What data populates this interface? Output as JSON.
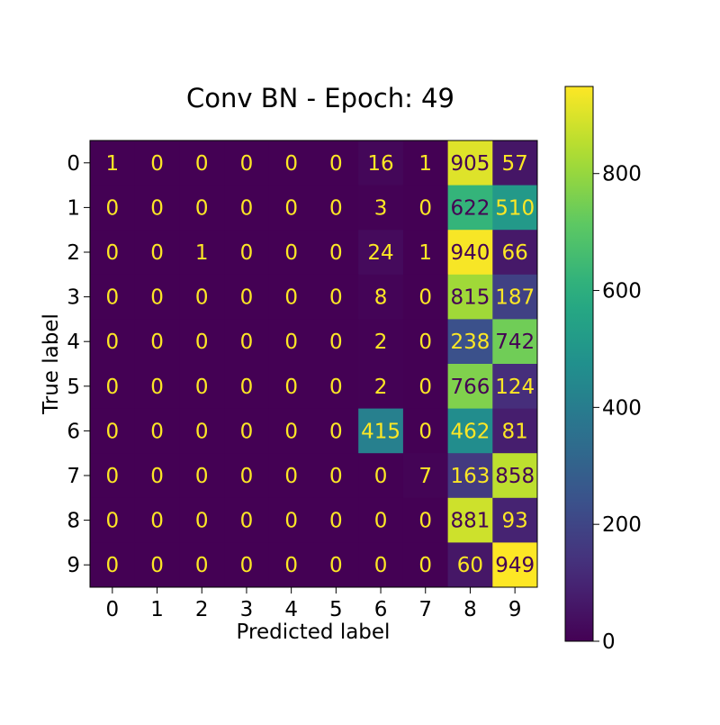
{
  "chart_data": {
    "type": "heatmap",
    "title": "Conv BN - Epoch: 49",
    "xlabel": "Predicted label",
    "ylabel": "True label",
    "x_tick_labels": [
      "0",
      "1",
      "2",
      "3",
      "4",
      "5",
      "6",
      "7",
      "8",
      "9"
    ],
    "y_tick_labels": [
      "0",
      "1",
      "2",
      "3",
      "4",
      "5",
      "6",
      "7",
      "8",
      "9"
    ],
    "matrix": [
      [
        1,
        0,
        0,
        0,
        0,
        0,
        16,
        1,
        905,
        57
      ],
      [
        0,
        0,
        0,
        0,
        0,
        0,
        3,
        0,
        622,
        510
      ],
      [
        0,
        0,
        1,
        0,
        0,
        0,
        24,
        1,
        940,
        66
      ],
      [
        0,
        0,
        0,
        0,
        0,
        0,
        8,
        0,
        815,
        187
      ],
      [
        0,
        0,
        0,
        0,
        0,
        0,
        2,
        0,
        238,
        742
      ],
      [
        0,
        0,
        0,
        0,
        0,
        0,
        2,
        0,
        766,
        124
      ],
      [
        0,
        0,
        0,
        0,
        0,
        0,
        415,
        0,
        462,
        81
      ],
      [
        0,
        0,
        0,
        0,
        0,
        0,
        0,
        7,
        163,
        858
      ],
      [
        0,
        0,
        0,
        0,
        0,
        0,
        0,
        0,
        881,
        93
      ],
      [
        0,
        0,
        0,
        0,
        0,
        0,
        0,
        0,
        60,
        949
      ]
    ],
    "colorbar": {
      "min": 0,
      "max": 949,
      "ticks": [
        0,
        200,
        400,
        600,
        800
      ],
      "colormap": "viridis"
    },
    "grid": false
  }
}
